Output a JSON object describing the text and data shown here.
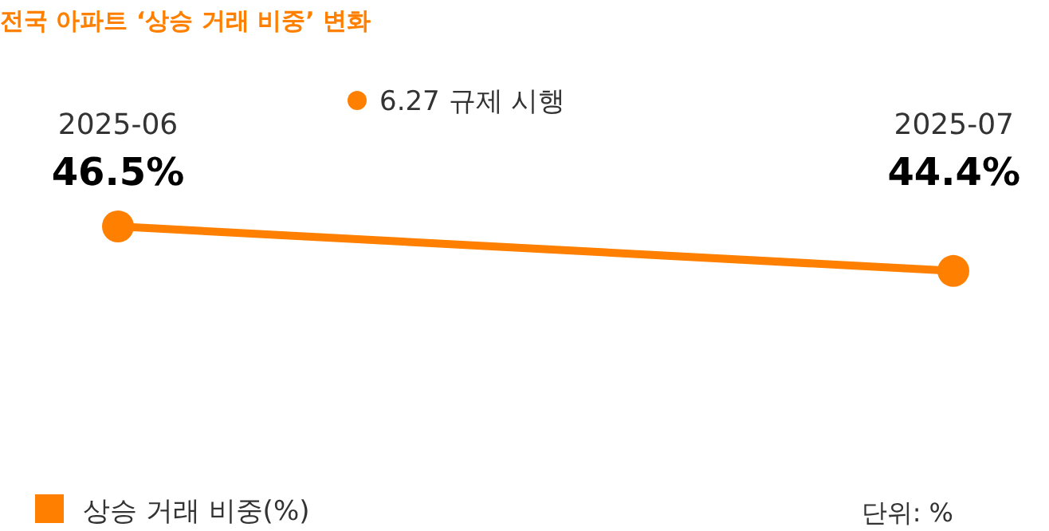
{
  "chart_data": {
    "type": "line",
    "title": "전국 아파트 ‘상승 거래 비중’ 변화",
    "categories": [
      "2025-06",
      "2025-07"
    ],
    "series": [
      {
        "name": "상승 거래 비중(%)",
        "color": "#ff8000",
        "values": [
          46.5,
          44.4
        ],
        "value_labels": [
          "46.5%",
          "44.4%"
        ]
      }
    ],
    "marker": "circle",
    "legend": "bottom left",
    "annotations": [
      "6.27 규제 시행",
      "단위: %"
    ]
  }
}
